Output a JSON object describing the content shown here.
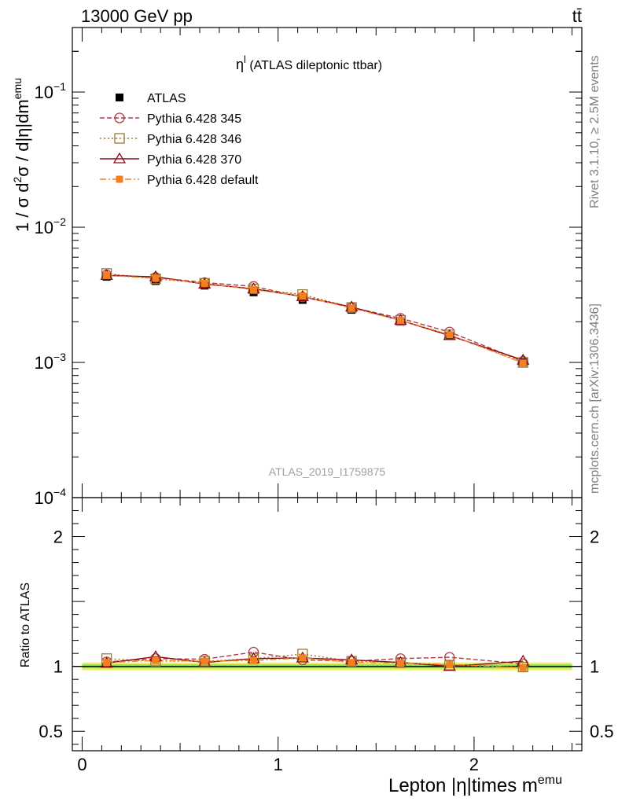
{
  "header": {
    "left": "13000 GeV pp",
    "right": "tt̄"
  },
  "side": {
    "rivet": "Rivet 3.1.10, ≥ 2.5M events",
    "source": "mcplots.cern.ch [arXiv:1306.3436]"
  },
  "colors": {
    "ATLAS": "#000000",
    "Pythia 6.428 345": "#b03a48",
    "Pythia 6.428 346": "#9c7a2c",
    "Pythia 6.428 370": "#8b0a1a",
    "Pythia 6.428 default": "#f58020",
    "band_inner": "#66dd66",
    "band_outer": "#f0f060"
  },
  "chart_data": [
    {
      "type": "scatter",
      "title": "η^l (ATLAS dileptonic ttbar)",
      "title_main": "η",
      "title_sup": "l",
      "title_rest": " (ATLAS dileptonic ttbar)",
      "watermark": "ATLAS_2019_I1759875",
      "ylabel_parts": [
        "1 / σ d",
        "2",
        "σ / d|η|dm",
        "emu"
      ],
      "yscale": "log",
      "ylim": [
        0.0001,
        0.3
      ],
      "xlim": [
        -0.05,
        2.55
      ],
      "yticks": [
        {
          "value": 0.1,
          "base": "10",
          "exp": "−1"
        },
        {
          "value": 0.01,
          "base": "10",
          "exp": "−2"
        },
        {
          "value": 0.001,
          "base": "10",
          "exp": "−3"
        },
        {
          "value": 0.0001,
          "base": "10",
          "exp": "−4"
        }
      ],
      "legend_position": "top-left",
      "x": [
        0.125,
        0.375,
        0.625,
        0.875,
        1.125,
        1.375,
        1.625,
        1.875,
        2.25
      ],
      "series": [
        {
          "name": "ATLAS",
          "style": "data",
          "values": [
            0.0043,
            0.004,
            0.0037,
            0.0033,
            0.0029,
            0.00245,
            0.002,
            0.00158,
            0.001
          ]
        },
        {
          "name": "Pythia 6.428 345",
          "style": "circle",
          "dash": "6,3",
          "values": [
            0.00445,
            0.00425,
            0.0039,
            0.00365,
            0.00305,
            0.00255,
            0.00212,
            0.00168,
            0.00102
          ]
        },
        {
          "name": "Pythia 6.428 346",
          "style": "square",
          "dash": "2,3",
          "values": [
            0.00455,
            0.00415,
            0.00385,
            0.0035,
            0.00318,
            0.00255,
            0.00205,
            0.0016,
            0.001
          ]
        },
        {
          "name": "Pythia 6.428 370",
          "style": "triangle",
          "dash": "",
          "values": [
            0.0044,
            0.0043,
            0.0038,
            0.0035,
            0.00307,
            0.00257,
            0.00205,
            0.00158,
            0.00104
          ]
        },
        {
          "name": "Pythia 6.428 default",
          "style": "fsquare",
          "dash": "8,3,2,3",
          "values": [
            0.0044,
            0.0042,
            0.00385,
            0.00345,
            0.0031,
            0.00252,
            0.00205,
            0.0016,
            0.00099
          ]
        }
      ]
    },
    {
      "type": "scatter",
      "ylabel": "Ratio to ATLAS",
      "xlabel_main": "Lepton |η|times m",
      "xlabel_sup": "emu",
      "ylim": [
        0.35,
        2.3
      ],
      "xlim": [
        -0.05,
        2.55
      ],
      "yticks": [
        0.5,
        1,
        2
      ],
      "xticks": [
        0,
        1,
        2
      ],
      "x": [
        0.125,
        0.375,
        0.625,
        0.875,
        1.125,
        1.375,
        1.625,
        1.875,
        2.25
      ],
      "band": {
        "inner": 0.015,
        "outer": 0.03
      },
      "series": [
        {
          "name": "Pythia 6.428 345",
          "values": [
            1.035,
            1.06,
            1.055,
            1.11,
            1.05,
            1.04,
            1.06,
            1.07,
            1.02
          ]
        },
        {
          "name": "Pythia 6.428 346",
          "values": [
            1.06,
            1.04,
            1.04,
            1.06,
            1.095,
            1.04,
            1.03,
            1.01,
            0.995
          ]
        },
        {
          "name": "Pythia 6.428 370",
          "values": [
            1.025,
            1.075,
            1.03,
            1.06,
            1.065,
            1.05,
            1.03,
            1.0,
            1.04
          ]
        },
        {
          "name": "Pythia 6.428 default",
          "values": [
            1.03,
            1.045,
            1.04,
            1.045,
            1.065,
            1.03,
            1.025,
            1.015,
            0.99
          ]
        }
      ]
    }
  ]
}
